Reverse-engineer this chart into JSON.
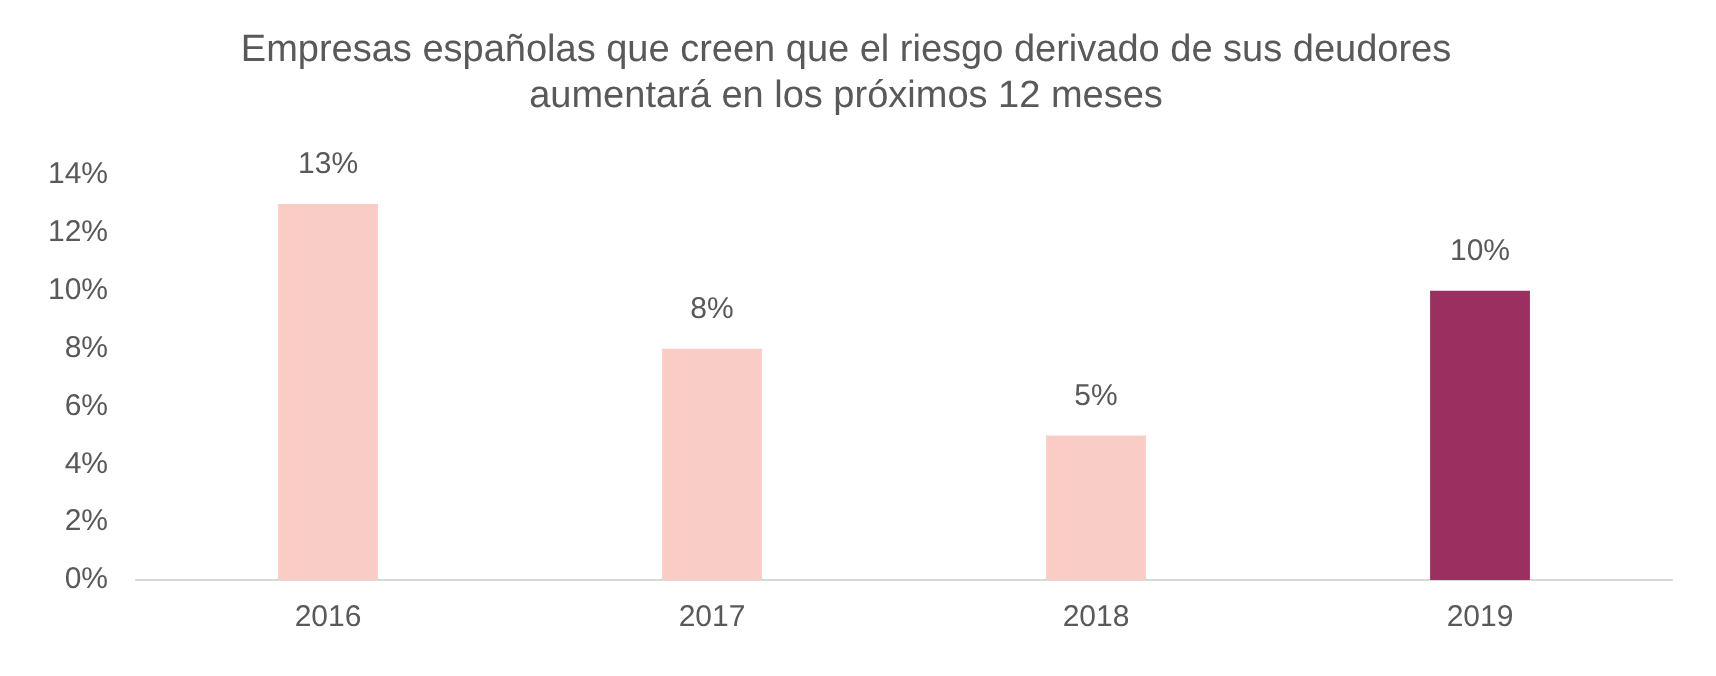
{
  "chart_data": {
    "type": "bar",
    "title": [
      "Empresas españolas que creen que el riesgo derivado de sus deudores",
      "aumentará en los próximos 12 meses"
    ],
    "categories": [
      "2016",
      "2017",
      "2018",
      "2019"
    ],
    "values": [
      13,
      8,
      5,
      10
    ],
    "colors": [
      "#f9cdc6",
      "#f9cdc6",
      "#f9cdc6",
      "#99305f"
    ],
    "value_labels": [
      "13%",
      "8%",
      "5%",
      "10%"
    ],
    "ylim": [
      0,
      14
    ],
    "yticks": [
      {
        "value": 0,
        "label": "0%"
      },
      {
        "value": 2,
        "label": "2%"
      },
      {
        "value": 4,
        "label": "4%"
      },
      {
        "value": 6,
        "label": "6%"
      },
      {
        "value": 8,
        "label": "8%"
      },
      {
        "value": 10,
        "label": "10%"
      },
      {
        "value": 12,
        "label": "12%"
      },
      {
        "value": 14,
        "label": "14%"
      }
    ],
    "grid": false,
    "legend": false
  }
}
